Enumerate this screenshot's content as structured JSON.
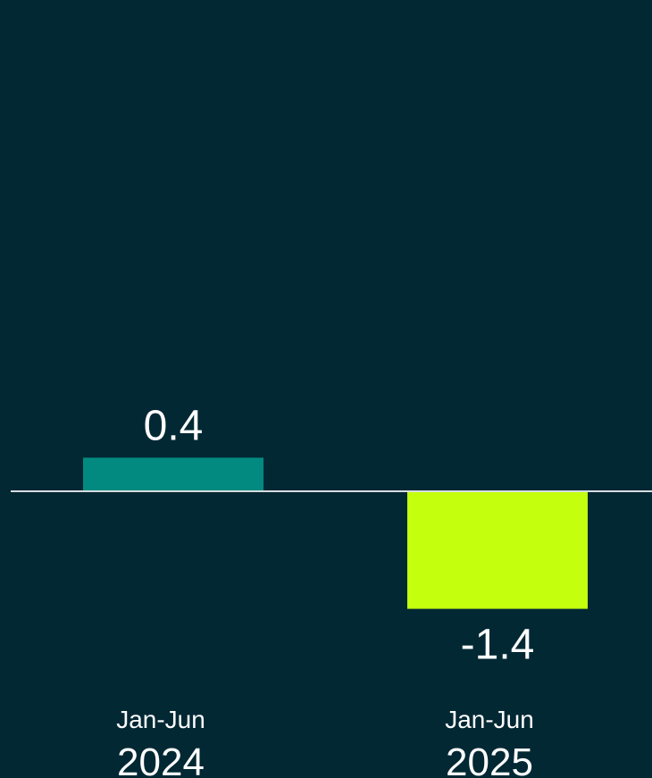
{
  "colors": {
    "background": "#022834",
    "baseline": "#d6dde0",
    "text": "#ffffff"
  },
  "chart_data": {
    "type": "bar",
    "title": "",
    "xlabel": "",
    "ylabel": "",
    "categories": [
      {
        "line1": "Jan-Jun",
        "line2": "2024"
      },
      {
        "line1": "Jan-Jun",
        "line2": "2025"
      }
    ],
    "values": [
      0.4,
      -1.4
    ],
    "value_labels": [
      "0.4",
      "-1.4"
    ],
    "bar_colors": [
      "#028A80",
      "#C4FF0E"
    ],
    "grid": false,
    "legend": "none"
  }
}
